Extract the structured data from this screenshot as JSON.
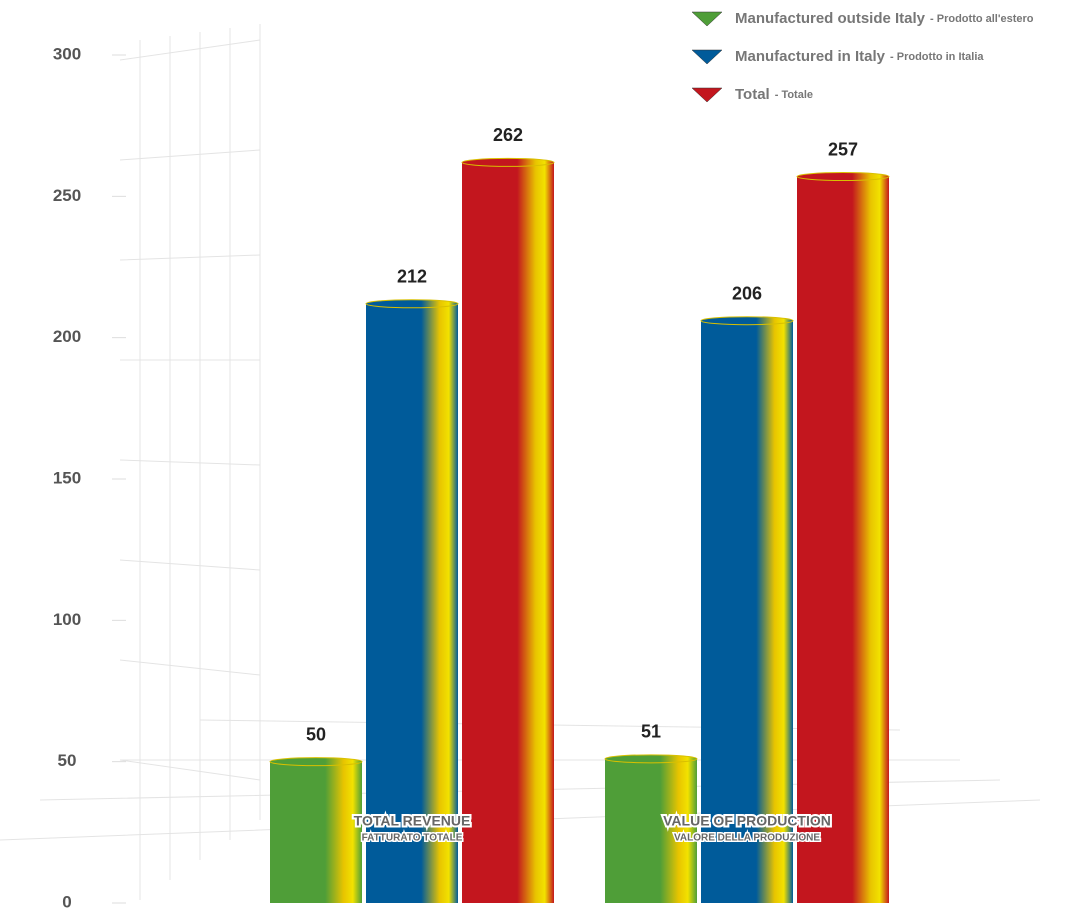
{
  "chart_data": {
    "type": "bar",
    "categories": [
      "TOTAL REVENUE",
      "VALUE OF PRODUCTION"
    ],
    "category_subtitles": [
      "FATTURATO TOTALE",
      "VALORE DELLA PRODUZIONE"
    ],
    "series": [
      {
        "name": "Manufactured outside Italy",
        "name_it": "- Prodotto all'estero",
        "color": "#4f9e38",
        "values": [
          50,
          51
        ]
      },
      {
        "name": "Manufactured in Italy",
        "name_it": "- Prodotto in Italia",
        "color": "#005b9a",
        "values": [
          212,
          206
        ]
      },
      {
        "name": "Total",
        "name_it": "- Totale",
        "color": "#c3161e",
        "values": [
          262,
          257
        ]
      }
    ],
    "ylim": [
      0,
      300
    ],
    "yticks": [
      0,
      50,
      100,
      150,
      200,
      250,
      300
    ],
    "legend": "top-right",
    "grid": false
  }
}
